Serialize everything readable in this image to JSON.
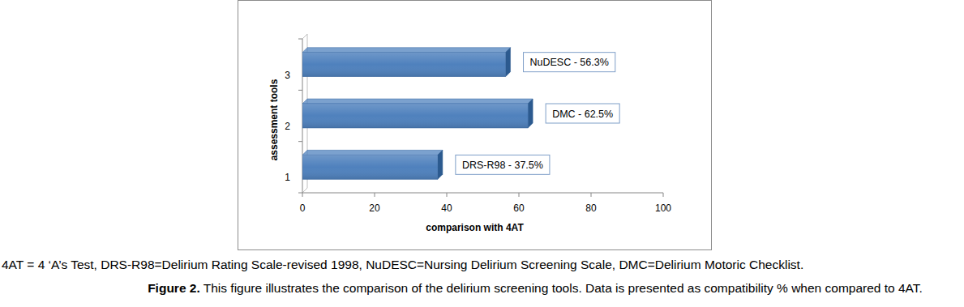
{
  "chart_data": {
    "type": "bar",
    "orientation": "horizontal",
    "categories": [
      "1",
      "2",
      "3"
    ],
    "values": [
      37.5,
      62.5,
      56.3
    ],
    "value_labels": [
      "DRS-R98 - 37.5%",
      "DMC - 62.5%",
      "NuDESC - 56.3%"
    ],
    "data_labels": true,
    "color": "#4f81bd",
    "xlim": [
      0,
      100
    ],
    "xticks": [
      0,
      20,
      40,
      60,
      80,
      100
    ],
    "x_label": "comparison with 4AT",
    "y_label": "assessment tools",
    "grid": false,
    "footnote": "4AT = 4 ‘A’s Test, DRS-R98=Delirium Rating Scale-revised 1998, NuDESC=Nursing Delirium Screening Scale, DMC=Delirium Motoric Checklist.",
    "caption": {
      "label": "Figure 2.",
      "text": "This figure illustrates the comparison of the delirium screening tools. Data is presented as compatibility % when compared to 4AT."
    }
  }
}
